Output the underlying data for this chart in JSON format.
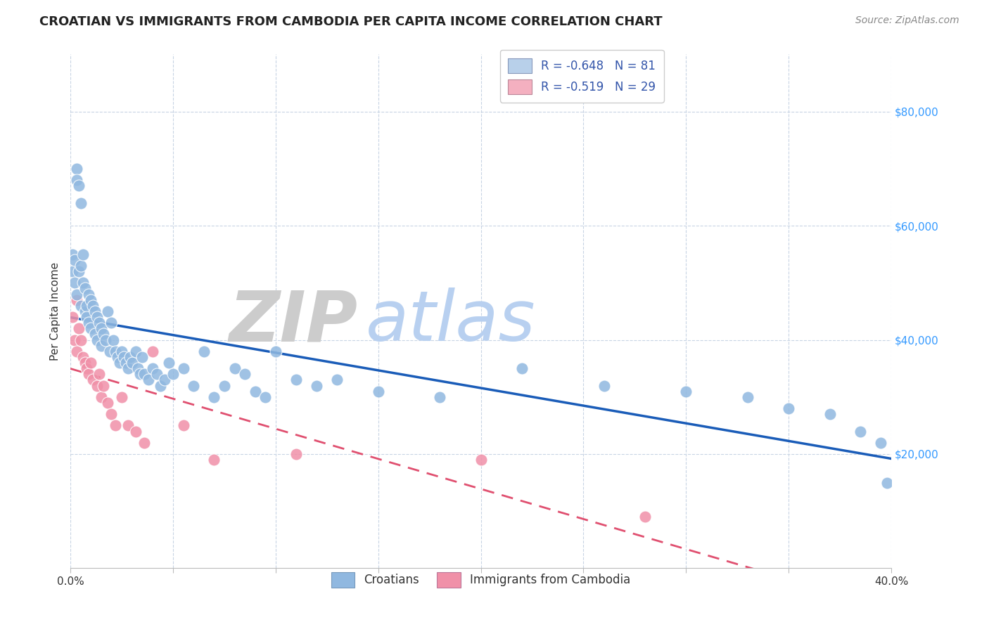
{
  "title": "CROATIAN VS IMMIGRANTS FROM CAMBODIA PER CAPITA INCOME CORRELATION CHART",
  "source": "Source: ZipAtlas.com",
  "ylabel": "Per Capita Income",
  "ytick_values": [
    20000,
    40000,
    60000,
    80000
  ],
  "legend_entries": [
    {
      "label": "Croatians",
      "color": "#b8d0ea",
      "R": "-0.648",
      "N": "81"
    },
    {
      "label": "Immigrants from Cambodia",
      "color": "#f4b0c0",
      "R": "-0.519",
      "N": "29"
    }
  ],
  "croatian_x": [
    0.001,
    0.001,
    0.002,
    0.002,
    0.003,
    0.003,
    0.003,
    0.004,
    0.004,
    0.005,
    0.005,
    0.005,
    0.006,
    0.006,
    0.007,
    0.007,
    0.008,
    0.008,
    0.009,
    0.009,
    0.01,
    0.01,
    0.011,
    0.012,
    0.012,
    0.013,
    0.013,
    0.014,
    0.015,
    0.015,
    0.016,
    0.017,
    0.018,
    0.019,
    0.02,
    0.021,
    0.022,
    0.023,
    0.024,
    0.025,
    0.026,
    0.027,
    0.028,
    0.029,
    0.03,
    0.032,
    0.033,
    0.034,
    0.035,
    0.036,
    0.038,
    0.04,
    0.042,
    0.044,
    0.046,
    0.048,
    0.05,
    0.055,
    0.06,
    0.065,
    0.07,
    0.075,
    0.08,
    0.085,
    0.09,
    0.095,
    0.1,
    0.11,
    0.12,
    0.13,
    0.15,
    0.18,
    0.22,
    0.26,
    0.3,
    0.33,
    0.35,
    0.37,
    0.385,
    0.395,
    0.398
  ],
  "croatian_y": [
    52000,
    55000,
    54000,
    50000,
    70000,
    68000,
    48000,
    67000,
    52000,
    64000,
    53000,
    46000,
    55000,
    50000,
    49000,
    45000,
    46000,
    44000,
    48000,
    43000,
    47000,
    42000,
    46000,
    45000,
    41000,
    44000,
    40000,
    43000,
    42000,
    39000,
    41000,
    40000,
    45000,
    38000,
    43000,
    40000,
    38000,
    37000,
    36000,
    38000,
    37000,
    36000,
    35000,
    37000,
    36000,
    38000,
    35000,
    34000,
    37000,
    34000,
    33000,
    35000,
    34000,
    32000,
    33000,
    36000,
    34000,
    35000,
    32000,
    38000,
    30000,
    32000,
    35000,
    34000,
    31000,
    30000,
    38000,
    33000,
    32000,
    33000,
    31000,
    30000,
    35000,
    32000,
    31000,
    30000,
    28000,
    27000,
    24000,
    22000,
    15000
  ],
  "cambodia_x": [
    0.001,
    0.002,
    0.003,
    0.003,
    0.004,
    0.005,
    0.006,
    0.007,
    0.008,
    0.009,
    0.01,
    0.011,
    0.013,
    0.014,
    0.015,
    0.016,
    0.018,
    0.02,
    0.022,
    0.025,
    0.028,
    0.032,
    0.036,
    0.04,
    0.055,
    0.07,
    0.11,
    0.2,
    0.28
  ],
  "cambodia_y": [
    44000,
    40000,
    38000,
    47000,
    42000,
    40000,
    37000,
    36000,
    35000,
    34000,
    36000,
    33000,
    32000,
    34000,
    30000,
    32000,
    29000,
    27000,
    25000,
    30000,
    25000,
    24000,
    22000,
    38000,
    25000,
    19000,
    20000,
    19000,
    9000
  ],
  "xlim": [
    0.0,
    0.4
  ],
  "ylim": [
    0,
    90000
  ],
  "blue_line_color": "#1a5cb8",
  "pink_line_color": "#e05070",
  "dot_blue": "#90b8e0",
  "dot_pink": "#f090a8",
  "grid_color": "#c8d4e4",
  "background_color": "#ffffff",
  "title_fontsize": 13,
  "source_fontsize": 10,
  "tick_fontsize": 11,
  "ytick_color": "#3399ff",
  "watermark_ZIP_color": "#cccccc",
  "watermark_atlas_color": "#b8d0f0",
  "watermark_fontsize": 72
}
